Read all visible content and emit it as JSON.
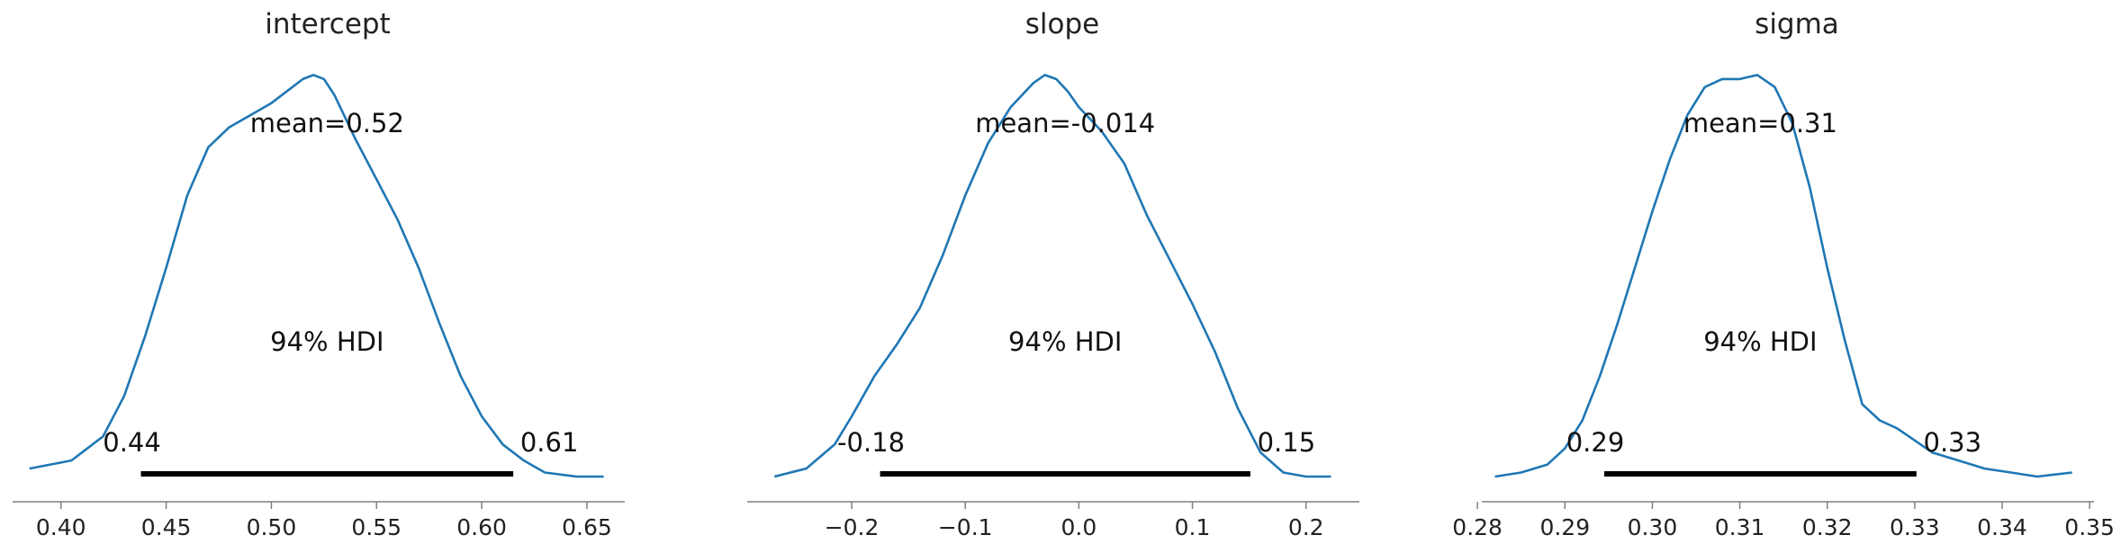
{
  "chart_data": [
    {
      "type": "area",
      "title": "intercept",
      "mean_label": "mean=0.52",
      "hdi_label": "94% HDI",
      "hdi": [
        0.438,
        0.615
      ],
      "hdi_low_label": "0.44",
      "hdi_high_label": "0.61",
      "xlim": [
        0.377,
        0.668
      ],
      "ylim": [
        0,
        1.03
      ],
      "xticks": [
        0.4,
        0.45,
        0.5,
        0.55,
        0.6,
        0.65
      ],
      "xtick_labels": [
        "0.40",
        "0.45",
        "0.50",
        "0.55",
        "0.60",
        "0.65"
      ],
      "density_x": [
        0.385,
        0.405,
        0.42,
        0.43,
        0.44,
        0.45,
        0.46,
        0.47,
        0.48,
        0.49,
        0.5,
        0.51,
        0.515,
        0.52,
        0.525,
        0.53,
        0.54,
        0.55,
        0.56,
        0.57,
        0.58,
        0.59,
        0.6,
        0.61,
        0.62,
        0.63,
        0.645,
        0.658
      ],
      "density_y": [
        0.02,
        0.04,
        0.1,
        0.2,
        0.35,
        0.52,
        0.7,
        0.82,
        0.87,
        0.9,
        0.93,
        0.97,
        0.99,
        1.0,
        0.99,
        0.95,
        0.84,
        0.74,
        0.64,
        0.52,
        0.38,
        0.25,
        0.15,
        0.08,
        0.04,
        0.01,
        0.0,
        0.0
      ],
      "grid": false
    },
    {
      "type": "area",
      "title": "slope",
      "mean_label": "mean=-0.014",
      "hdi_label": "94% HDI",
      "hdi": [
        -0.175,
        0.151
      ],
      "hdi_low_label": "-0.18",
      "hdi_high_label": "0.15",
      "xlim": [
        -0.292,
        0.247
      ],
      "ylim": [
        0,
        1.03
      ],
      "xticks": [
        -0.2,
        -0.1,
        0.0,
        0.1,
        0.2
      ],
      "xtick_labels": [
        "−0.2",
        "−0.1",
        "0.0",
        "0.1",
        "0.2"
      ],
      "density_x": [
        -0.268,
        -0.24,
        -0.215,
        -0.2,
        -0.18,
        -0.16,
        -0.14,
        -0.12,
        -0.1,
        -0.08,
        -0.06,
        -0.04,
        -0.03,
        -0.02,
        -0.01,
        0.0,
        0.02,
        0.04,
        0.06,
        0.08,
        0.1,
        0.12,
        0.14,
        0.16,
        0.18,
        0.2,
        0.222
      ],
      "density_y": [
        0.0,
        0.02,
        0.08,
        0.15,
        0.25,
        0.33,
        0.42,
        0.55,
        0.7,
        0.83,
        0.92,
        0.98,
        1.0,
        0.99,
        0.96,
        0.92,
        0.86,
        0.78,
        0.65,
        0.54,
        0.43,
        0.31,
        0.17,
        0.06,
        0.01,
        0.0,
        0.0
      ],
      "grid": false
    },
    {
      "type": "area",
      "title": "sigma",
      "mean_label": "mean=0.31",
      "hdi_label": "94% HDI",
      "hdi": [
        0.2945,
        0.3302
      ],
      "hdi_low_label": "0.29",
      "hdi_high_label": "0.33",
      "xlim": [
        0.2805,
        0.3505
      ],
      "ylim": [
        0,
        1.03
      ],
      "xticks": [
        0.28,
        0.29,
        0.3,
        0.31,
        0.32,
        0.33,
        0.34,
        0.35
      ],
      "xtick_labels": [
        "0.28",
        "0.29",
        "0.30",
        "0.31",
        "0.32",
        "0.33",
        "0.34",
        "0.35"
      ],
      "density_x": [
        0.282,
        0.285,
        0.288,
        0.29,
        0.292,
        0.294,
        0.296,
        0.298,
        0.3,
        0.302,
        0.304,
        0.306,
        0.308,
        0.31,
        0.312,
        0.314,
        0.316,
        0.318,
        0.32,
        0.322,
        0.324,
        0.326,
        0.328,
        0.33,
        0.332,
        0.335,
        0.338,
        0.341,
        0.344,
        0.348
      ],
      "density_y": [
        0.0,
        0.01,
        0.03,
        0.07,
        0.14,
        0.25,
        0.38,
        0.52,
        0.66,
        0.79,
        0.9,
        0.97,
        0.99,
        0.99,
        1.0,
        0.97,
        0.88,
        0.72,
        0.52,
        0.34,
        0.18,
        0.14,
        0.12,
        0.09,
        0.06,
        0.04,
        0.02,
        0.01,
        0.0,
        0.01
      ],
      "grid": false
    }
  ]
}
